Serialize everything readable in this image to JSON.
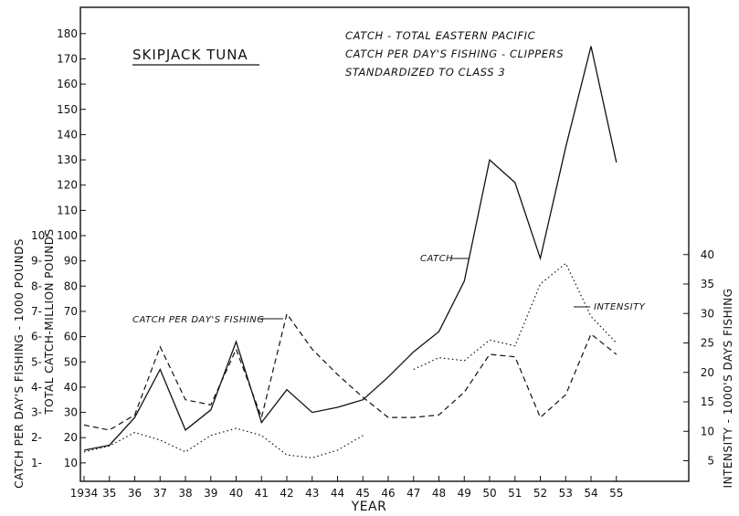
{
  "chart_data": {
    "type": "line",
    "title": "SKIPJACK TUNA",
    "notes": [
      "CATCH - TOTAL EASTERN PACIFIC",
      "CATCH PER DAY'S FISHING - CLIPPERS",
      "STANDARDIZED TO CLASS 3"
    ],
    "xlabel": "YEAR",
    "x": [
      "1934",
      "35",
      "36",
      "37",
      "38",
      "39",
      "40",
      "41",
      "42",
      "43",
      "44",
      "45",
      "46",
      "47",
      "48",
      "49",
      "50",
      "51",
      "52",
      "53",
      "54",
      "55"
    ],
    "ylabel_outer": "CATCH PER DAY'S FISHING - 1000 POUNDS",
    "ylabel_inner": "TOTAL CATCH-MILLION POUNDS",
    "ylabel_right": "INTENSITY - 1000'S DAYS FISHING",
    "y_catch": {
      "ticks": [
        "10",
        "20",
        "30",
        "40",
        "50",
        "60",
        "70",
        "80",
        "90",
        "100",
        "110",
        "120",
        "130",
        "140",
        "150",
        "160",
        "170",
        "180"
      ],
      "ylim": [
        0,
        185
      ]
    },
    "y_cpdf": {
      "ticks": [
        "1-",
        "2-",
        "3-",
        "4-",
        "5-",
        "6-",
        "7-",
        "8-",
        "9-",
        "10-"
      ],
      "ylim": [
        0,
        18.5
      ]
    },
    "y_intensity": {
      "ticks": [
        "5",
        "10",
        "15",
        "20",
        "25",
        "30",
        "35",
        "40"
      ],
      "ylim": [
        -3.3,
        40
      ]
    },
    "series": [
      {
        "name": "CATCH",
        "axis": "catch",
        "style": "solid",
        "values": [
          15,
          17,
          28,
          47,
          23,
          31,
          58,
          26,
          39,
          30,
          32,
          35,
          44,
          54,
          62,
          82,
          130,
          121,
          91,
          135,
          175,
          129
        ]
      },
      {
        "name": "CATCH PER DAY'S FISHING",
        "axis": "cpdf",
        "style": "dashed",
        "values": [
          2.5,
          2.3,
          2.9,
          5.6,
          3.5,
          3.3,
          5.5,
          2.8,
          6.9,
          5.5,
          4.5,
          3.6,
          2.8,
          2.8,
          2.9,
          3.8,
          5.3,
          5.2,
          2.8,
          3.7,
          6.1,
          5.3
        ]
      },
      {
        "name": "INTENSITY",
        "axis": "intensity",
        "style": "dotted",
        "values": [
          6.5,
          7.5,
          9.8,
          8.5,
          6.5,
          9.3,
          10.5,
          9.3,
          6,
          5.5,
          6.8,
          9.3,
          null,
          20.5,
          22.5,
          22,
          25.5,
          24.5,
          35,
          38.5,
          29.5,
          25
        ]
      }
    ]
  }
}
